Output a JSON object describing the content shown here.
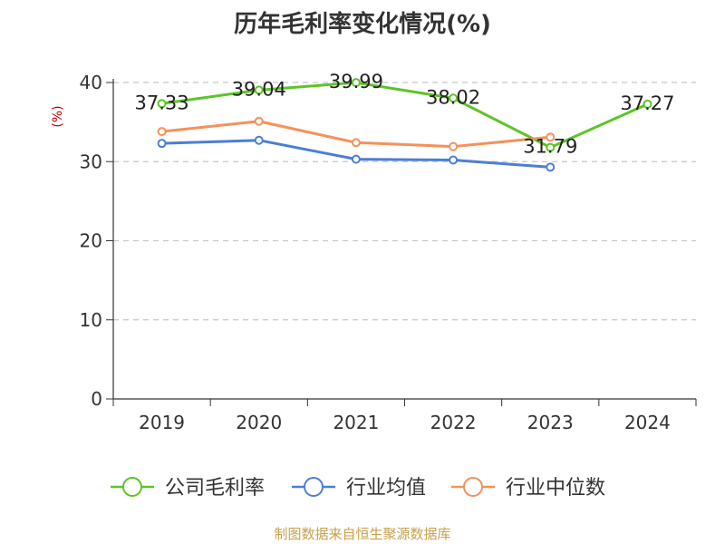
{
  "chart_data": {
    "type": "line",
    "title": "历年毛利率变化情况(%)",
    "ylabel": "(%)",
    "xlabel": "",
    "categories": [
      "2019",
      "2020",
      "2021",
      "2022",
      "2023",
      "2024"
    ],
    "yticks": [
      0,
      10,
      20,
      30,
      40
    ],
    "ylim": [
      0,
      40
    ],
    "grid": true,
    "legend_position": "bottom",
    "series": [
      {
        "name": "公司毛利率",
        "color": "#5ec427",
        "values": [
          37.33,
          39.04,
          39.99,
          38.02,
          31.79,
          37.27
        ],
        "labels": [
          "37.33",
          "39.04",
          "39.99",
          "38.02",
          "31.79",
          "37.27"
        ]
      },
      {
        "name": "行业均值",
        "color": "#4a7fd6",
        "values": [
          32.3,
          32.7,
          30.3,
          30.2,
          29.3,
          null
        ]
      },
      {
        "name": "行业中位数",
        "color": "#f5915a",
        "values": [
          33.8,
          35.1,
          32.4,
          31.9,
          33.1,
          null
        ]
      }
    ]
  },
  "source": "制图数据来自恒生聚源数据库"
}
